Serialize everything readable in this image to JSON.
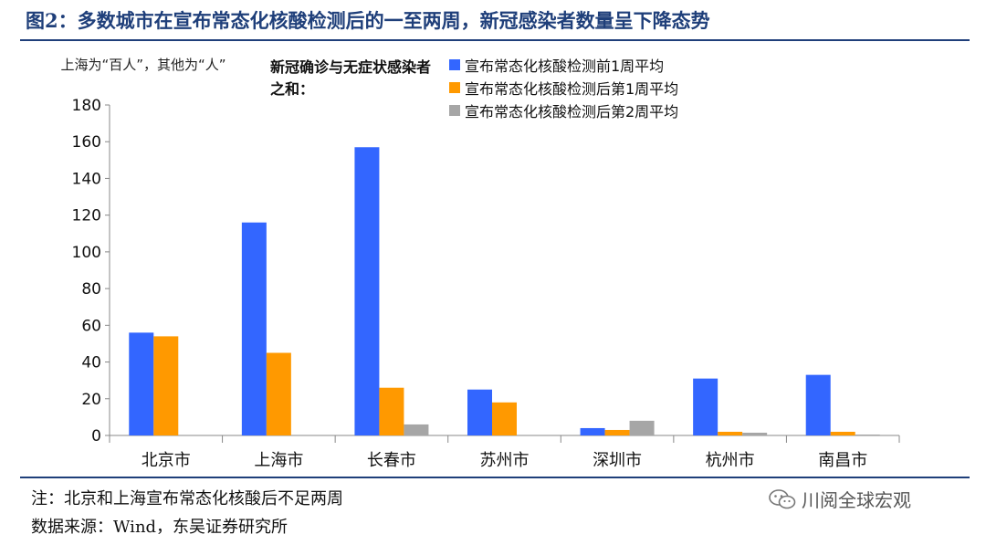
{
  "figure": {
    "title": "图2：多数城市在宣布常态化核酸检测后的一至两周，新冠感染者数量呈下降态势",
    "unit_note": "上海为“百人”，其他为“人”",
    "sum_label": "新冠确诊与无症状感染者之和：",
    "note": "注：北京和上海宣布常态化核酸后不足两周",
    "source": "数据来源：Wind，东吴证券研究所",
    "watermark": "川阅全球宏观",
    "watermark_icon": "wechat-icon"
  },
  "chart_data": {
    "type": "bar",
    "title": "",
    "xlabel": "",
    "ylabel": "",
    "categories": [
      "北京市",
      "上海市",
      "长春市",
      "苏州市",
      "深圳市",
      "杭州市",
      "南昌市"
    ],
    "series": [
      {
        "name": "宣布常态化核酸检测前1周平均",
        "color": "#3366ff",
        "values": [
          56,
          116,
          157,
          25,
          4,
          31,
          33
        ]
      },
      {
        "name": "宣布常态化核酸检测后第1周平均",
        "color": "#ff9900",
        "values": [
          54,
          45,
          26,
          18,
          3,
          2,
          2
        ]
      },
      {
        "name": "宣布常态化核酸检测后第2周平均",
        "color": "#a6a6a6",
        "values": [
          0,
          0,
          6,
          0,
          8,
          1.5,
          0.5
        ]
      }
    ],
    "ylim": [
      0,
      180
    ],
    "yticks": [
      0,
      20,
      40,
      60,
      80,
      100,
      120,
      140,
      160,
      180
    ],
    "grid": false,
    "legend": "top-center"
  }
}
